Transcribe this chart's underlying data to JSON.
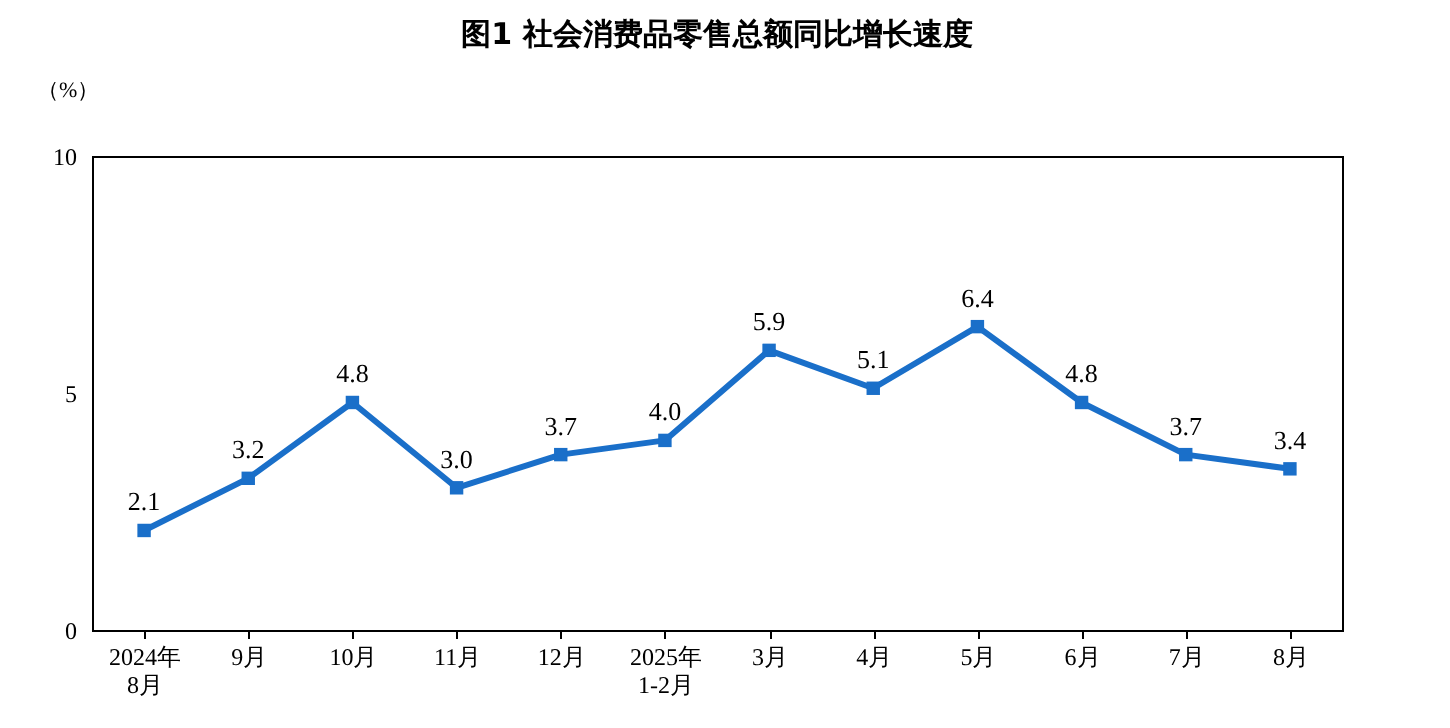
{
  "chart_data": {
    "type": "line",
    "title": "图1  社会消费品零售总额同比增长速度",
    "ylabel": "（%）",
    "categories": [
      "2024年\n8月",
      "9月",
      "10月",
      "11月",
      "12月",
      "2025年\n1-2月",
      "3月",
      "4月",
      "5月",
      "6月",
      "7月",
      "8月"
    ],
    "series": [
      {
        "color": "#1a6fc9",
        "values": [
          2.1,
          3.2,
          4.8,
          3.0,
          3.7,
          4.0,
          5.9,
          5.1,
          6.4,
          4.8,
          3.7,
          3.4
        ],
        "value_labels": [
          "2.1",
          "3.2",
          "4.8",
          "3.0",
          "3.7",
          "4.0",
          "5.9",
          "5.1",
          "6.4",
          "4.8",
          "3.7",
          "3.4"
        ]
      }
    ],
    "ylim": [
      0,
      10
    ],
    "yticks": [
      0,
      5,
      10
    ],
    "grid": false,
    "legend": false,
    "marker": "square",
    "line_style": "solid"
  }
}
